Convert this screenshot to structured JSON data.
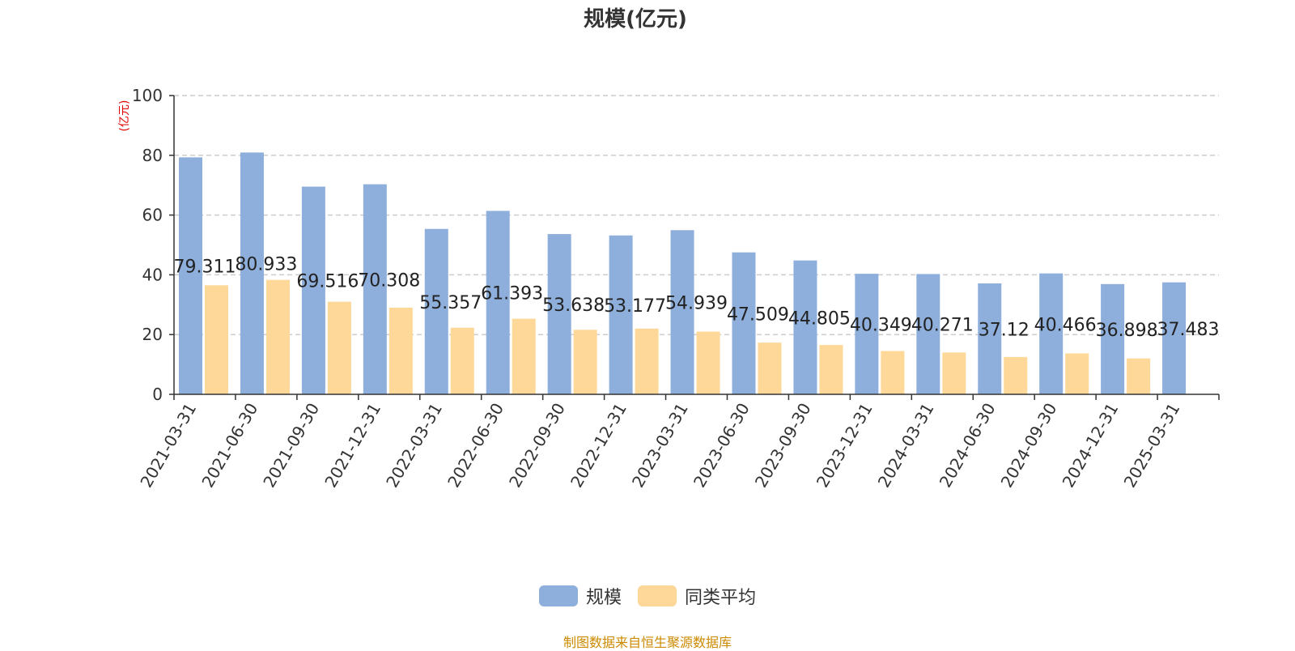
{
  "chart_data": {
    "type": "bar",
    "title": "规模(亿元)",
    "y_unit_label": "(亿元)",
    "categories": [
      "2021-03-31",
      "2021-06-30",
      "2021-09-30",
      "2021-12-31",
      "2022-03-31",
      "2022-06-30",
      "2022-09-30",
      "2022-12-31",
      "2023-03-31",
      "2023-06-30",
      "2023-09-30",
      "2023-12-31",
      "2024-03-31",
      "2024-06-30",
      "2024-09-30",
      "2024-12-31",
      "2025-03-31"
    ],
    "series": [
      {
        "name": "规模",
        "color": "#8eaedb",
        "values": [
          79.311,
          80.933,
          69.516,
          70.308,
          55.357,
          61.393,
          53.638,
          53.177,
          54.939,
          47.509,
          44.805,
          40.349,
          40.271,
          37.12,
          40.466,
          36.898,
          37.483
        ],
        "labels": [
          "79.311",
          "80.933",
          "69.516",
          "70.308",
          "55.357",
          "61.393",
          "53.638",
          "53.177",
          "54.939",
          "47.509",
          "44.805",
          "40.349",
          "40.271",
          "37.12",
          "40.466",
          "36.898",
          "37.483"
        ]
      },
      {
        "name": "同类平均",
        "color": "#fdd898",
        "values": [
          36.5,
          38.3,
          31.0,
          29.0,
          22.3,
          25.3,
          21.6,
          22.0,
          21.0,
          17.3,
          16.5,
          14.5,
          14.0,
          12.5,
          13.7,
          12.0,
          null
        ]
      }
    ],
    "ylim": [
      0,
      100
    ],
    "yticks": [
      0,
      20,
      40,
      60,
      80,
      100
    ],
    "grid": true,
    "legend_position": "bottom-center"
  },
  "footer": {
    "source": "制图数据来自恒生聚源数据库"
  }
}
